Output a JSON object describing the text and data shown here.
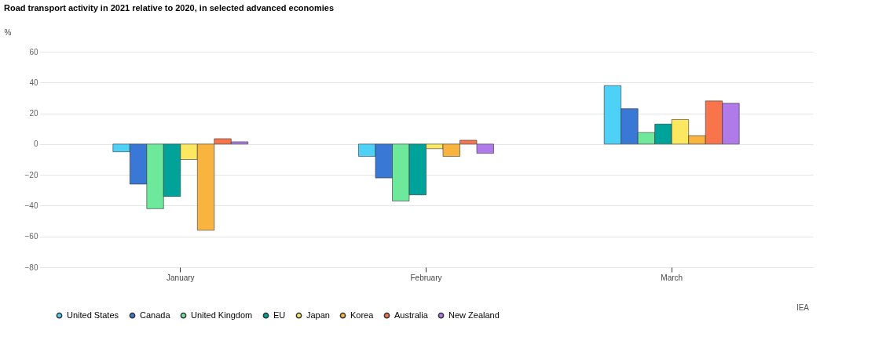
{
  "chart_data": {
    "type": "bar",
    "title": "Road transport activity in 2021 relative to 2020, in selected advanced economies",
    "ylabel": "%",
    "categories": [
      "January",
      "February",
      "March"
    ],
    "series": [
      {
        "name": "United States",
        "color": "#4fd0f7",
        "values": [
          -5,
          -8,
          38
        ]
      },
      {
        "name": "Canada",
        "color": "#3a78d6",
        "values": [
          -26,
          -22,
          23
        ]
      },
      {
        "name": "United Kingdom",
        "color": "#6ee89a",
        "values": [
          -42,
          -37,
          7.5
        ]
      },
      {
        "name": "EU",
        "color": "#00a39a",
        "values": [
          -34,
          -33,
          13
        ]
      },
      {
        "name": "Japan",
        "color": "#fbe860",
        "values": [
          -10,
          -3,
          16
        ]
      },
      {
        "name": "Korea",
        "color": "#f9b440",
        "values": [
          -56,
          -8,
          5.5
        ]
      },
      {
        "name": "Australia",
        "color": "#f8744a",
        "values": [
          3.5,
          2.5,
          28
        ]
      },
      {
        "name": "New Zealand",
        "color": "#b07ae8",
        "values": [
          1.5,
          -6,
          26.5
        ]
      }
    ],
    "ylim": [
      -80,
      60
    ],
    "yticks": [
      -80,
      -60,
      -40,
      -20,
      0,
      20,
      40,
      60
    ],
    "grid": "y",
    "legend": "bottom",
    "annotations": [
      "IEA"
    ]
  }
}
